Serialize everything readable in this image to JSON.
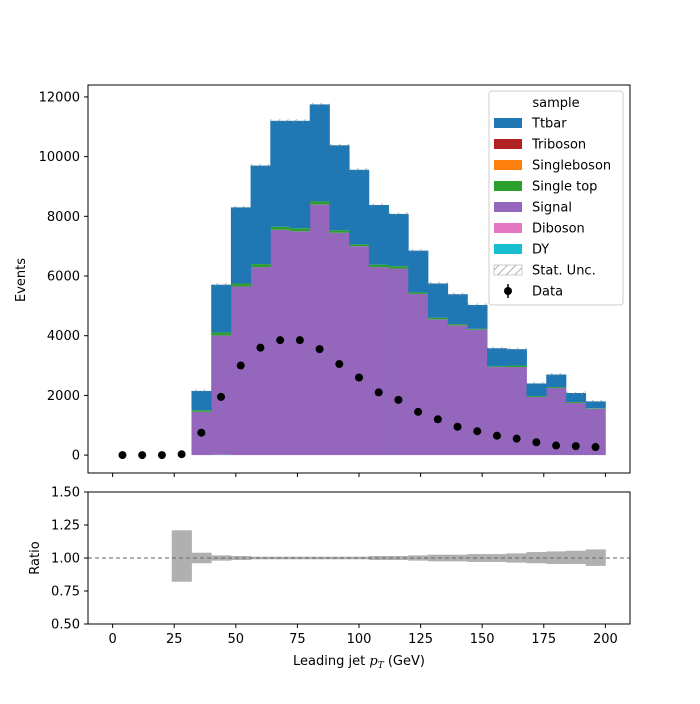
{
  "chart_data": {
    "type": "bar",
    "xlabel": "Leading jet  p_T (GeV)",
    "xlabel_main": "Leading jet  ",
    "xlabel_sym": "p",
    "xlabel_sub": "T",
    "xlabel_unit": " (GeV)",
    "ylabel": "Events",
    "ratio_ylabel": "Ratio",
    "xlim": [
      -10,
      210
    ],
    "ylim": [
      -600,
      12400
    ],
    "ratio_ylim": [
      0.5,
      1.5
    ],
    "xticks": [
      0,
      25,
      50,
      75,
      100,
      125,
      150,
      175,
      200
    ],
    "yticks": [
      0,
      2000,
      4000,
      6000,
      8000,
      10000,
      12000
    ],
    "ratio_yticks": [
      "0.50",
      "0.75",
      "1.00",
      "1.25",
      "1.50"
    ],
    "ratio_ytick_values": [
      0.5,
      0.75,
      1.0,
      1.25,
      1.5
    ],
    "bin_edges": [
      24,
      32,
      40,
      48,
      56,
      64,
      72,
      80,
      88,
      96,
      104,
      112,
      120,
      128,
      136,
      144,
      152,
      160,
      168,
      176,
      184,
      192,
      200
    ],
    "legend": {
      "title": "sample",
      "placement": "top-right",
      "entries": [
        {
          "label": "Ttbar",
          "color": "#1f77b4",
          "kind": "box"
        },
        {
          "label": "Triboson",
          "color": "#b22222",
          "kind": "box"
        },
        {
          "label": "Singleboson",
          "color": "#ff7f0e",
          "kind": "box"
        },
        {
          "label": "Single top",
          "color": "#2ca02c",
          "kind": "box"
        },
        {
          "label": "Signal",
          "color": "#9467bd",
          "kind": "box"
        },
        {
          "label": "Diboson",
          "color": "#e377c2",
          "kind": "box"
        },
        {
          "label": "DY",
          "color": "#17becf",
          "kind": "box"
        },
        {
          "label": "Stat. Unc.",
          "color": "#888888",
          "kind": "hatch"
        },
        {
          "label": "Data",
          "color": "#000000",
          "kind": "marker"
        }
      ]
    },
    "series": [
      {
        "name": "DY",
        "color": "#17becf",
        "values": [
          0,
          0,
          10,
          0,
          0,
          0,
          0,
          0,
          0,
          0,
          0,
          0,
          0,
          0,
          0,
          0,
          0,
          0,
          0,
          0,
          0,
          0
        ]
      },
      {
        "name": "Signal",
        "color": "#9467bd",
        "values": [
          0,
          1450,
          4000,
          5650,
          6300,
          7550,
          7500,
          8400,
          7450,
          7000,
          6300,
          6250,
          5400,
          4550,
          4350,
          4200,
          2950,
          2950,
          1950,
          2250,
          1750,
          1550
        ]
      },
      {
        "name": "Single top",
        "color": "#2ca02c",
        "values": [
          0,
          50,
          100,
          100,
          100,
          100,
          100,
          100,
          80,
          60,
          80,
          80,
          50,
          50,
          40,
          30,
          30,
          50,
          30,
          30,
          30,
          20
        ]
      },
      {
        "name": "Ttbar",
        "color": "#1f77b4",
        "values": [
          0,
          650,
          1600,
          2550,
          3300,
          3550,
          3600,
          3250,
          2850,
          2500,
          2000,
          1750,
          1400,
          1150,
          1000,
          800,
          600,
          550,
          420,
          420,
          300,
          230
        ]
      }
    ],
    "data_points": {
      "name": "Data",
      "x": [
        4,
        12,
        20,
        28,
        36,
        44,
        52,
        60,
        68,
        76,
        84,
        92,
        100,
        108,
        116,
        124,
        132,
        140,
        148,
        156,
        164,
        172,
        180,
        188,
        196
      ],
      "y": [
        0,
        0,
        0,
        30,
        750,
        1950,
        3000,
        3600,
        3850,
        3850,
        3550,
        3050,
        2600,
        2100,
        1850,
        1450,
        1200,
        950,
        800,
        650,
        550,
        430,
        320,
        300,
        270
      ]
    },
    "ratio_uncertainty": {
      "lo": [
        0.82,
        0.96,
        0.98,
        0.985,
        0.99,
        0.99,
        0.99,
        0.99,
        0.99,
        0.99,
        0.985,
        0.985,
        0.98,
        0.975,
        0.975,
        0.97,
        0.97,
        0.965,
        0.96,
        0.955,
        0.955,
        0.94
      ],
      "hi": [
        1.21,
        1.04,
        1.02,
        1.015,
        1.01,
        1.01,
        1.01,
        1.01,
        1.01,
        1.01,
        1.015,
        1.015,
        1.02,
        1.025,
        1.025,
        1.03,
        1.03,
        1.035,
        1.045,
        1.05,
        1.055,
        1.065
      ]
    },
    "ratio_reference": 1.0
  }
}
